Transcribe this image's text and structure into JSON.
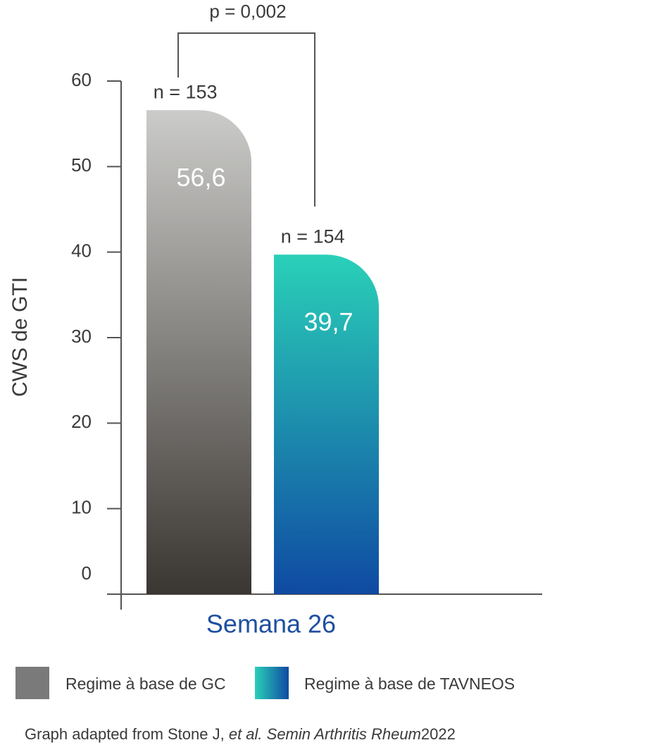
{
  "chart_data": {
    "type": "bar",
    "y_label": "CWS de GTI",
    "categories": [
      "Semana 26"
    ],
    "series": [
      {
        "name": "Regime à base de GC",
        "color": "#7a7a7a",
        "gradient": [
          "#cbcbc9",
          "#3a3632"
        ],
        "values": [
          56.6
        ],
        "value_labels": [
          "56,6"
        ],
        "annotation": "n = 153"
      },
      {
        "name": "Regime à base de TAVNEOS",
        "color": "#1f8fb5",
        "gradient": [
          "#2ad0b8",
          "#0f4aa2"
        ],
        "values": [
          39.7
        ],
        "value_labels": [
          "39,7"
        ],
        "annotation": "n = 154"
      }
    ],
    "significance": "p = 0,002",
    "ylim": [
      0,
      60
    ],
    "yticks": [
      0,
      10,
      20,
      30,
      40,
      50,
      60
    ],
    "source": [
      "Graph adapted from Stone J, ",
      "et al. Semin Arthritis Rheum",
      "2022"
    ]
  }
}
